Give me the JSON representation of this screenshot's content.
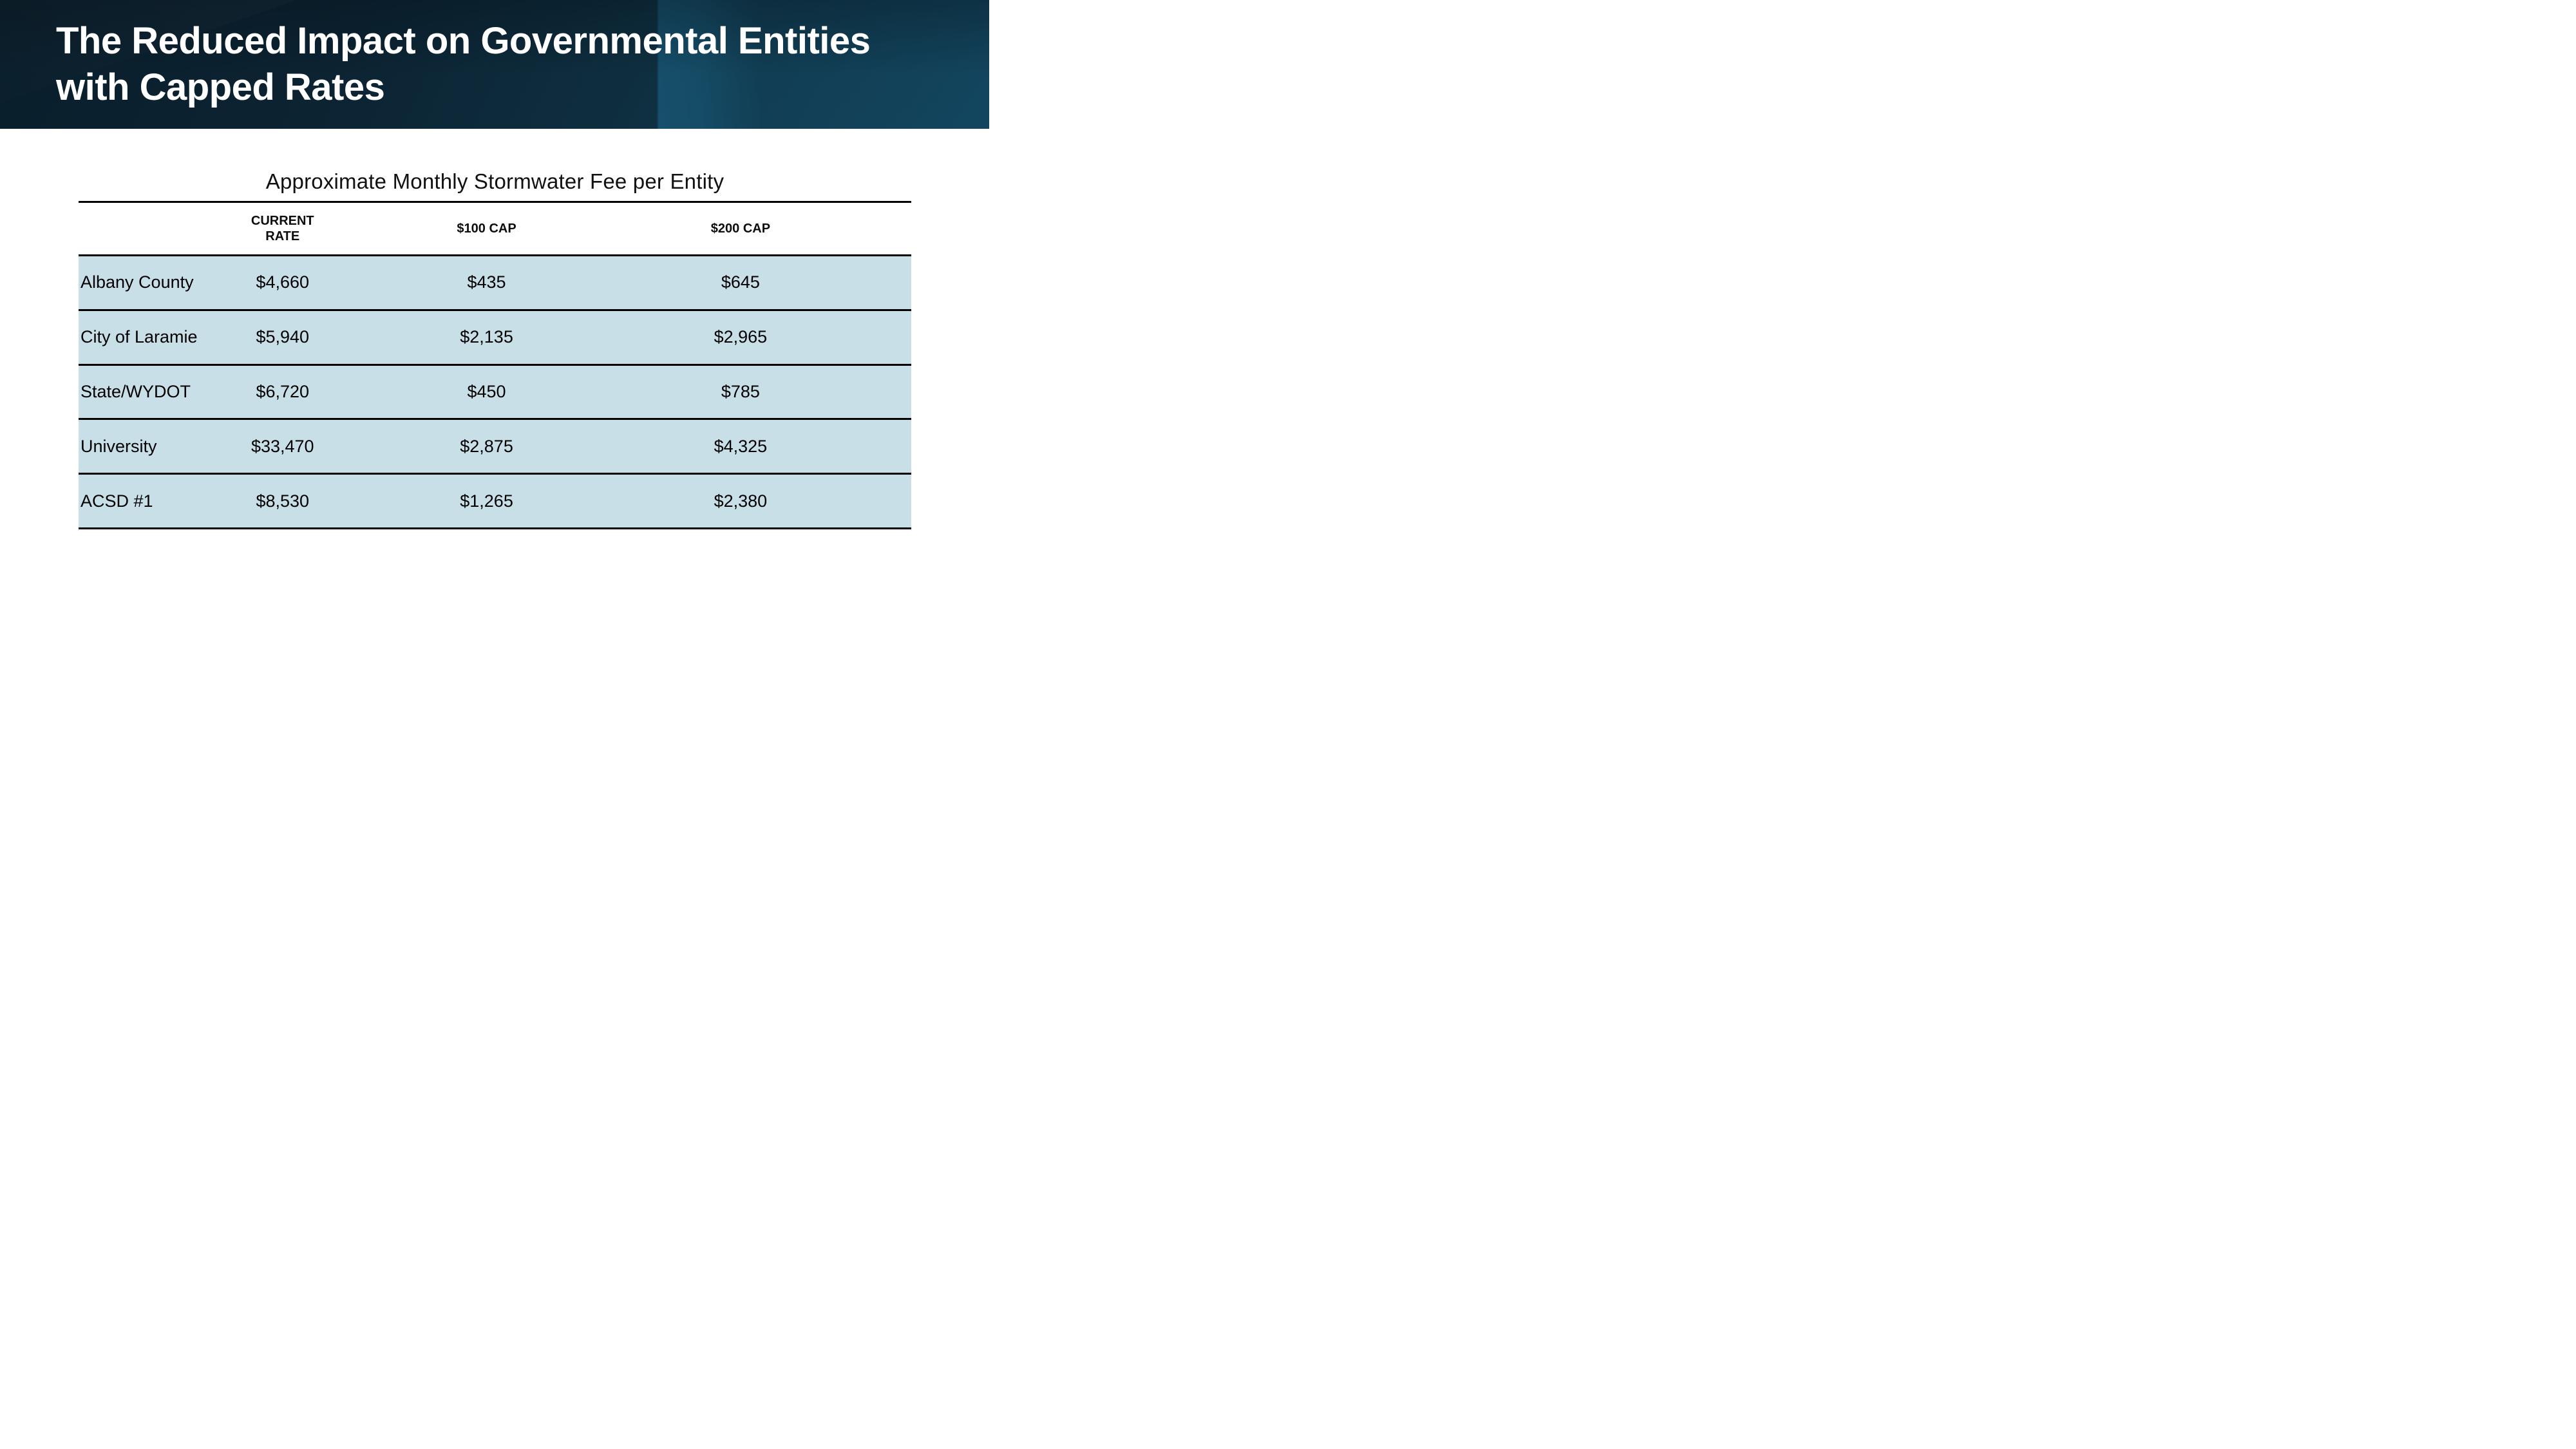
{
  "slide": {
    "title": "The Reduced Impact on Governmental Entities\nwith Capped Rates"
  },
  "table": {
    "title": "Approximate Monthly Stormwater Fee per Entity",
    "columns": [
      "",
      "CURRENT\nRATE",
      "$100 CAP",
      "$200 CAP"
    ],
    "rows": [
      {
        "entity": "Albany County",
        "current_rate": "$4,660",
        "cap_100": "$435",
        "cap_200": "$645"
      },
      {
        "entity": "City of Laramie",
        "current_rate": "$5,940",
        "cap_100": "$2,135",
        "cap_200": "$2,965"
      },
      {
        "entity": "State/WYDOT",
        "current_rate": "$6,720",
        "cap_100": "$450",
        "cap_200": "$785"
      },
      {
        "entity": "University",
        "current_rate": "$33,470",
        "cap_100": "$2,875",
        "cap_200": "$4,325"
      },
      {
        "entity": "ACSD #1",
        "current_rate": "$8,530",
        "cap_100": "$1,265",
        "cap_200": "$2,380"
      }
    ]
  },
  "colors": {
    "band_dark": "#0a1e2b",
    "band_mid": "#0e2f40",
    "band_light": "#1e6e94",
    "row_background": "#c8dfe8",
    "table_line": "#000000",
    "title_text": "#ffffff",
    "body_text": "#000000"
  }
}
